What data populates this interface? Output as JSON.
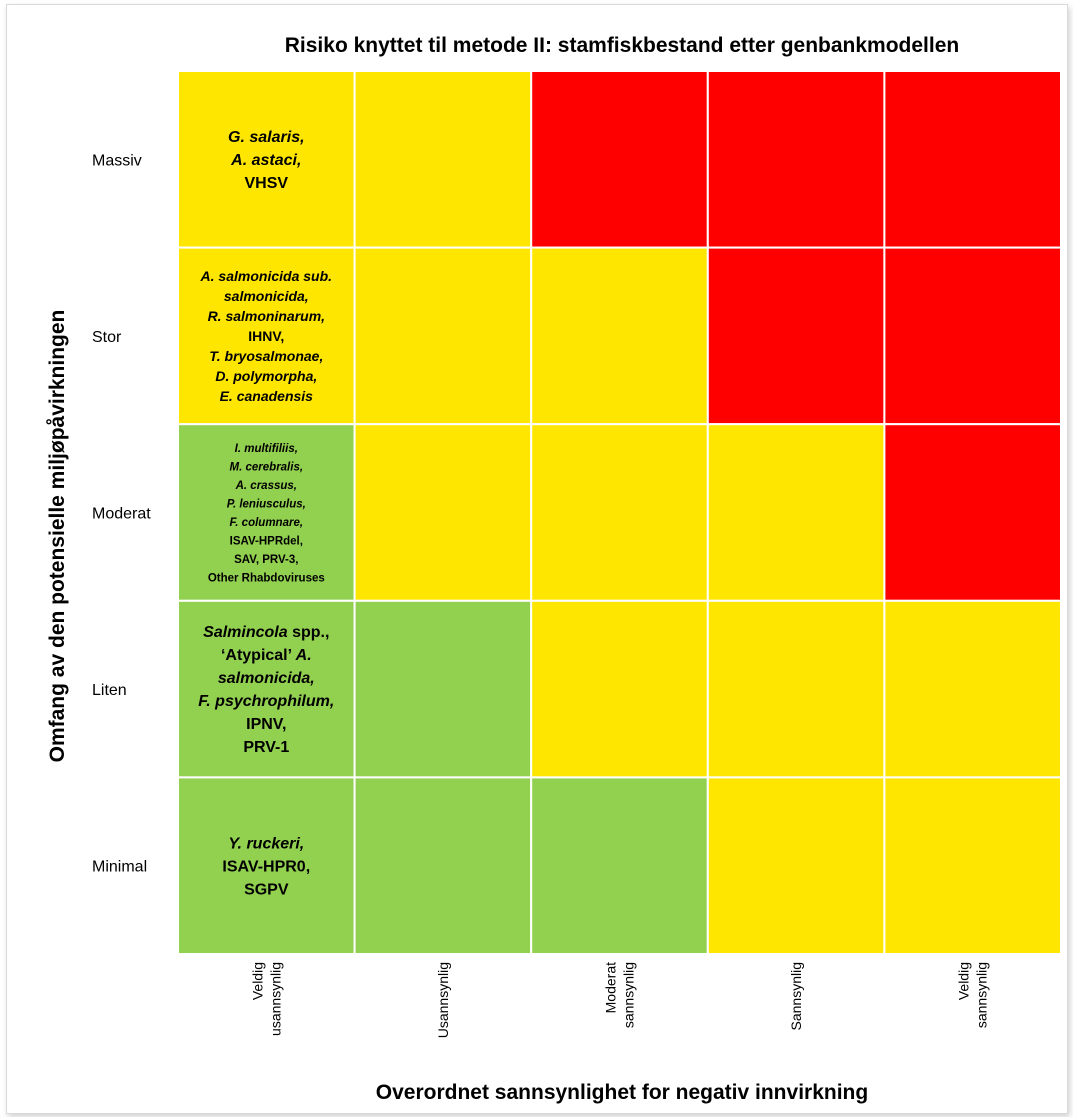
{
  "chart_data": {
    "type": "heatmap",
    "title": "Risiko knyttet til metode II: stamfiskbestand etter genbankmodellen",
    "xlabel": "Overordnet sannsynlighet for negativ innvirkning",
    "ylabel": "Omfang av den potensielle miljøpåvirkningen",
    "rows": [
      "Massiv",
      "Stor",
      "Moderat",
      "Liten",
      "Minimal"
    ],
    "columns": [
      [
        "Veldig",
        "usannsynlig"
      ],
      [
        "Usannsynlig"
      ],
      [
        "Moderat",
        "sannsynlig"
      ],
      [
        "Sannsynlig"
      ],
      [
        "Veldig",
        "sannsynlig"
      ]
    ],
    "risk_colors": {
      "low": "#92d050",
      "medium": "#ffe600",
      "high": "#ff0000"
    },
    "matrix": [
      [
        "medium",
        "medium",
        "high",
        "high",
        "high"
      ],
      [
        "medium",
        "medium",
        "medium",
        "high",
        "high"
      ],
      [
        "low",
        "medium",
        "medium",
        "medium",
        "high"
      ],
      [
        "low",
        "low",
        "medium",
        "medium",
        "medium"
      ],
      [
        "low",
        "low",
        "low",
        "medium",
        "medium"
      ]
    ],
    "cell_labels": [
      {
        "row": 0,
        "col": 0,
        "size": "large",
        "lines": [
          [
            {
              "t": "G. salaris,",
              "i": true
            }
          ],
          [
            {
              "t": "A. astaci,",
              "i": true
            }
          ],
          [
            {
              "t": "VHSV",
              "i": false
            }
          ]
        ]
      },
      {
        "row": 1,
        "col": 0,
        "size": "medium",
        "lines": [
          [
            {
              "t": "A. salmonicida sub.",
              "i": true
            }
          ],
          [
            {
              "t": "salmonicida,",
              "i": true
            }
          ],
          [
            {
              "t": "R. salmoninarum,",
              "i": true
            }
          ],
          [
            {
              "t": "IHNV,",
              "i": false
            }
          ],
          [
            {
              "t": "T. bryosalmonae,",
              "i": true
            }
          ],
          [
            {
              "t": "D. polymorpha,",
              "i": true
            }
          ],
          [
            {
              "t": "E. canadensis",
              "i": true
            }
          ]
        ]
      },
      {
        "row": 2,
        "col": 0,
        "size": "small",
        "lines": [
          [
            {
              "t": "I. multifiliis,",
              "i": true
            }
          ],
          [
            {
              "t": "M. cerebralis,",
              "i": true
            }
          ],
          [
            {
              "t": "A. crassus,",
              "i": true
            }
          ],
          [
            {
              "t": "P. leniusculus,",
              "i": true
            }
          ],
          [
            {
              "t": "F. columnare,",
              "i": true
            }
          ],
          [
            {
              "t": "ISAV-HPRdel,",
              "i": false
            }
          ],
          [
            {
              "t": "SAV, PRV-3,",
              "i": false
            }
          ],
          [
            {
              "t": "Other  Rhabdoviruses",
              "i": false
            }
          ]
        ]
      },
      {
        "row": 3,
        "col": 0,
        "size": "large",
        "lines": [
          [
            {
              "t": "Salmincola",
              "i": true
            },
            {
              "t": " spp.,",
              "i": false
            }
          ],
          [
            {
              "t": "‘Atypical’ ",
              "i": false
            },
            {
              "t": "A.",
              "i": true
            }
          ],
          [
            {
              "t": "salmonicida,",
              "i": true
            }
          ],
          [
            {
              "t": "F. psychrophilum,",
              "i": true
            }
          ],
          [
            {
              "t": "IPNV,",
              "i": false
            }
          ],
          [
            {
              "t": "PRV-1",
              "i": false
            }
          ]
        ]
      },
      {
        "row": 4,
        "col": 0,
        "size": "large",
        "lines": [
          [
            {
              "t": "Y. ruckeri,",
              "i": true
            }
          ],
          [
            {
              "t": "ISAV-HPR0,",
              "i": false
            }
          ],
          [
            {
              "t": "SGPV",
              "i": false
            }
          ]
        ]
      }
    ],
    "grid_color": "#ffffff",
    "legend": "none"
  }
}
